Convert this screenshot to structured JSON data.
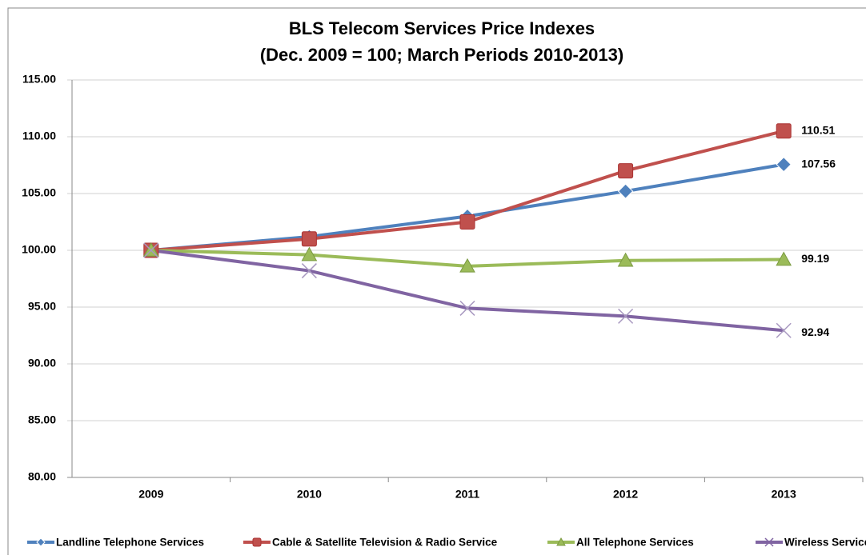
{
  "chart_data": {
    "type": "line",
    "title": "BLS Telecom Services Price Indexes",
    "subtitle": "(Dec. 2009 = 100; March Periods 2010-2013)",
    "categories": [
      "2009",
      "2010",
      "2011",
      "2012",
      "2013"
    ],
    "series": [
      {
        "name": "Landline Telephone Services",
        "color": "#4f81bd",
        "marker": "diamond",
        "values": [
          100,
          101.2,
          103.0,
          105.2,
          107.56
        ]
      },
      {
        "name": "Cable & Satellite Television & Radio Service",
        "color": "#c0504d",
        "marker": "square",
        "values": [
          100,
          101.0,
          102.5,
          107.0,
          110.51
        ]
      },
      {
        "name": "All Telephone Services",
        "color": "#9bbb59",
        "marker": "triangle",
        "values": [
          100,
          99.6,
          98.6,
          99.1,
          99.19
        ]
      },
      {
        "name": "Wireless Service",
        "color": "#8064a2",
        "marker": "x",
        "values": [
          100,
          98.2,
          94.9,
          94.2,
          92.94
        ]
      }
    ],
    "ylim": [
      80,
      115
    ],
    "yticks": [
      {
        "value": 80,
        "label": "80.00"
      },
      {
        "value": 85,
        "label": "85.00"
      },
      {
        "value": 90,
        "label": "90.00"
      },
      {
        "value": 95,
        "label": "95.00"
      },
      {
        "value": 100,
        "label": "100.00"
      },
      {
        "value": 105,
        "label": "105.00"
      },
      {
        "value": 110,
        "label": "110.00"
      },
      {
        "value": 115,
        "label": "115.00"
      }
    ],
    "grid": true,
    "legend": "bottom"
  }
}
